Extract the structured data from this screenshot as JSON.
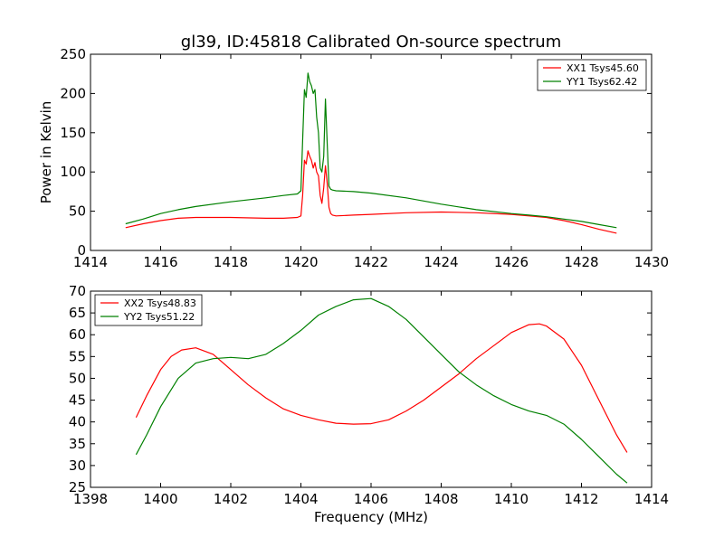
{
  "figure_title": "gl39, ID:45818 Calibrated On-source spectrum",
  "colors": {
    "xx": "#ff0000",
    "yy": "#008000"
  },
  "chart_data": [
    {
      "type": "line",
      "xlabel": "",
      "ylabel": "Power in Kelvin",
      "xlim": [
        1414,
        1430
      ],
      "ylim": [
        0,
        250
      ],
      "xticks": [
        1414,
        1416,
        1418,
        1420,
        1422,
        1424,
        1426,
        1428,
        1430
      ],
      "yticks": [
        0,
        50,
        100,
        150,
        200,
        250
      ],
      "grid": false,
      "legend_position": "top-right",
      "series": [
        {
          "name": "XX1 Tsys45.60",
          "color": "#ff0000",
          "x": [
            1415.0,
            1415.5,
            1416.0,
            1416.5,
            1417.0,
            1418.0,
            1419.0,
            1419.5,
            1419.9,
            1420.0,
            1420.05,
            1420.1,
            1420.15,
            1420.2,
            1420.25,
            1420.3,
            1420.35,
            1420.4,
            1420.45,
            1420.5,
            1420.55,
            1420.6,
            1420.65,
            1420.7,
            1420.75,
            1420.8,
            1420.85,
            1420.9,
            1421.0,
            1421.5,
            1422.0,
            1423.0,
            1424.0,
            1425.0,
            1426.0,
            1426.5,
            1427.0,
            1427.5,
            1428.0,
            1428.5,
            1429.0
          ],
          "values": [
            29,
            34,
            38,
            41,
            42,
            42,
            41,
            41,
            42,
            44,
            70,
            115,
            110,
            127,
            120,
            115,
            105,
            112,
            100,
            95,
            70,
            60,
            80,
            108,
            85,
            55,
            47,
            45,
            44,
            45,
            46,
            48,
            49,
            48,
            46,
            44,
            42,
            38,
            33,
            27,
            22
          ]
        },
        {
          "name": "YY1 Tsys62.42",
          "color": "#008000",
          "x": [
            1415.0,
            1415.5,
            1416.0,
            1416.5,
            1417.0,
            1418.0,
            1419.0,
            1419.5,
            1419.9,
            1420.0,
            1420.05,
            1420.1,
            1420.15,
            1420.2,
            1420.25,
            1420.3,
            1420.35,
            1420.4,
            1420.45,
            1420.5,
            1420.55,
            1420.6,
            1420.65,
            1420.7,
            1420.75,
            1420.8,
            1420.85,
            1420.9,
            1421.0,
            1421.5,
            1422.0,
            1423.0,
            1424.0,
            1425.0,
            1426.0,
            1426.5,
            1427.0,
            1427.5,
            1428.0,
            1428.5,
            1429.0
          ],
          "values": [
            34,
            40,
            47,
            52,
            56,
            62,
            67,
            70,
            72,
            76,
            140,
            205,
            195,
            226,
            215,
            210,
            200,
            205,
            170,
            150,
            105,
            100,
            120,
            193,
            135,
            82,
            78,
            77,
            76,
            75,
            73,
            67,
            59,
            52,
            47,
            45,
            43,
            40,
            37,
            33,
            29
          ]
        }
      ]
    },
    {
      "type": "line",
      "xlabel": "Frequency (MHz)",
      "ylabel": "",
      "xlim": [
        1398,
        1414
      ],
      "ylim": [
        25,
        70
      ],
      "xticks": [
        1398,
        1400,
        1402,
        1404,
        1406,
        1408,
        1410,
        1412,
        1414
      ],
      "yticks": [
        25,
        30,
        35,
        40,
        45,
        50,
        55,
        60,
        65,
        70
      ],
      "grid": false,
      "legend_position": "top-left",
      "series": [
        {
          "name": "XX2 Tsys48.83",
          "color": "#ff0000",
          "x": [
            1399.3,
            1399.6,
            1400.0,
            1400.3,
            1400.6,
            1401.0,
            1401.5,
            1402.0,
            1402.5,
            1403.0,
            1403.5,
            1404.0,
            1404.5,
            1405.0,
            1405.5,
            1406.0,
            1406.5,
            1407.0,
            1407.5,
            1408.0,
            1408.5,
            1409.0,
            1409.5,
            1410.0,
            1410.5,
            1410.8,
            1411.0,
            1411.5,
            1412.0,
            1412.5,
            1413.0,
            1413.3
          ],
          "values": [
            41,
            46,
            52,
            55,
            56.5,
            57,
            55.5,
            52,
            48.5,
            45.5,
            43,
            41.5,
            40.5,
            39.7,
            39.5,
            39.6,
            40.5,
            42.5,
            45,
            48,
            51,
            54.5,
            57.5,
            60.5,
            62.3,
            62.5,
            62,
            59,
            53,
            45,
            37,
            33
          ]
        },
        {
          "name": "YY2 Tsys51.22",
          "color": "#008000",
          "x": [
            1399.3,
            1399.6,
            1400.0,
            1400.5,
            1401.0,
            1401.5,
            1402.0,
            1402.5,
            1403.0,
            1403.5,
            1404.0,
            1404.5,
            1405.0,
            1405.5,
            1406.0,
            1406.5,
            1407.0,
            1407.5,
            1408.0,
            1408.5,
            1409.0,
            1409.5,
            1410.0,
            1410.5,
            1411.0,
            1411.5,
            1412.0,
            1412.5,
            1413.0,
            1413.3
          ],
          "values": [
            32.5,
            37,
            43.5,
            50,
            53.5,
            54.5,
            54.8,
            54.5,
            55.5,
            58,
            61,
            64.5,
            66.5,
            68,
            68.3,
            66.5,
            63.5,
            59.5,
            55.5,
            51.5,
            48.5,
            46,
            44,
            42.5,
            41.5,
            39.5,
            36,
            32,
            28,
            26
          ]
        }
      ]
    }
  ]
}
